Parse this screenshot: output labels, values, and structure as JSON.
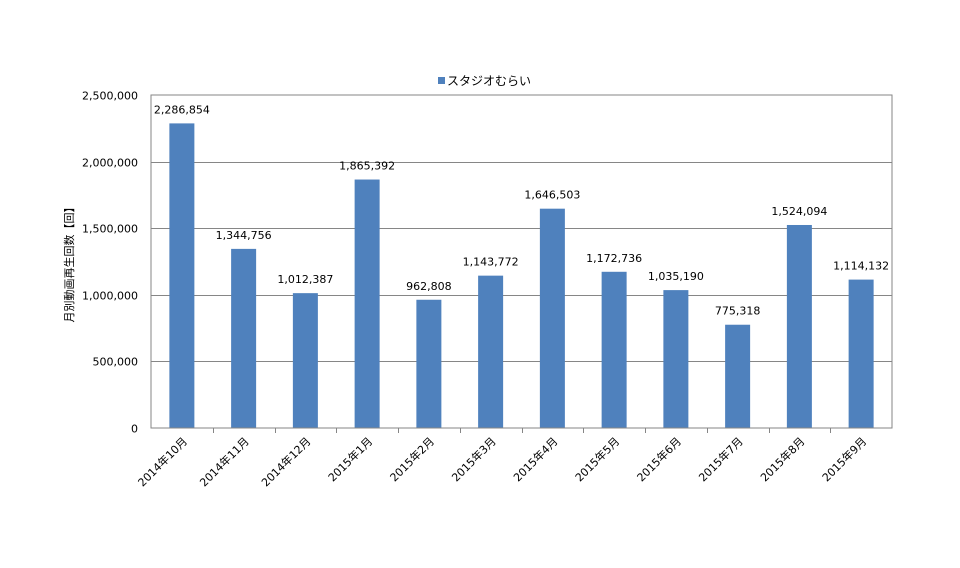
{
  "chart_data": {
    "type": "bar",
    "title": "",
    "xlabel": "",
    "ylabel": "月別動画再生回数【回】",
    "categories": [
      "2014年10月",
      "2014年11月",
      "2014年12月",
      "2015年1月",
      "2015年2月",
      "2015年3月",
      "2015年4月",
      "2015年5月",
      "2015年6月",
      "2015年7月",
      "2015年8月",
      "2015年9月"
    ],
    "series": [
      {
        "name": "スタジオむらい",
        "color": "#4f81bd",
        "values": [
          2286854,
          1344756,
          1012387,
          1865392,
          962808,
          1143772,
          1646503,
          1172736,
          1035190,
          775318,
          1524094,
          1114132
        ],
        "value_labels": [
          "2,286,854",
          "1,344,756",
          "1,012,387",
          "1,865,392",
          "962,808",
          "1,143,772",
          "1,646,503",
          "1,172,736",
          "1,035,190",
          "775,318",
          "1,524,094",
          "1,114,132"
        ]
      }
    ],
    "ylim": [
      0,
      2500000
    ],
    "yticks": [
      0,
      500000,
      1000000,
      1500000,
      2000000,
      2500000
    ],
    "ytick_labels": [
      "0",
      "500,000",
      "1,000,000",
      "1,500,000",
      "2,000,000",
      "2,500,000"
    ],
    "grid": true,
    "legend_position": "top-center"
  }
}
